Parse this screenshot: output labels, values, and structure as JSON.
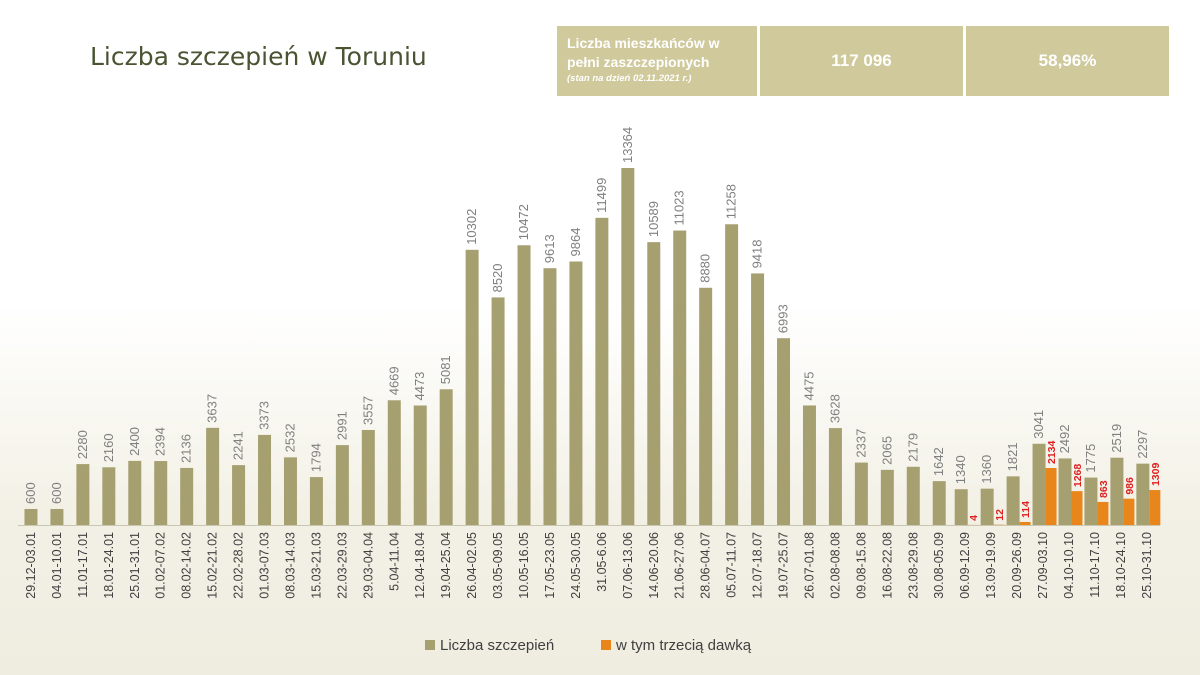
{
  "title": "Liczba szczepień w Toruniu",
  "info": {
    "label": "Liczba mieszkańców w pełni zaszczepionych",
    "note": "(stan na dzień 02.11.2021 r.)",
    "count": "117 096",
    "percent": "58,96%"
  },
  "colors": {
    "total": "#a6a071",
    "third": "#e8861c",
    "title": "#4a5433",
    "info_box": "#cfc99c"
  },
  "chart_data": {
    "type": "bar",
    "categories": [
      "29.12-03.01",
      "04.01-10.01",
      "11.01-17.01",
      "18.01-24.01",
      "25.01-31.01",
      "01.02-07.02",
      "08.02-14.02",
      "15.02-21.02",
      "22.02-28.02",
      "01.03-07.03",
      "08.03-14.03",
      "15.03-21.03",
      "22.03-29.03",
      "29.03-04.04",
      "5.04-11.04",
      "12.04-18.04",
      "19.04-25.04",
      "26.04-02.05",
      "03.05-09.05",
      "10.05-16.05",
      "17.05-23.05",
      "24.05-30.05",
      "31.05-6.06",
      "07.06-13.06",
      "14.06-20.06",
      "21.06-27.06",
      "28.06-04.07",
      "05.07-11.07",
      "12.07-18.07",
      "19.07-25.07",
      "26.07-01.08",
      "02.08-08.08",
      "09.08-15.08",
      "16.08-22.08",
      "23.08-29.08",
      "30.08-05.09",
      "06.09-12.09",
      "13.09-19.09",
      "20.09-26.09",
      "27.09-03.10",
      "04.10-10.10",
      "11.10-17.10",
      "18.10-24.10",
      "25.10-31.10"
    ],
    "series": [
      {
        "name": "Liczba szczepień",
        "values": [
          600,
          600,
          2280,
          2160,
          2400,
          2394,
          2136,
          3637,
          2241,
          3373,
          2532,
          1794,
          2991,
          3557,
          4669,
          4473,
          5081,
          10302,
          8520,
          10472,
          9613,
          9864,
          11499,
          13364,
          10589,
          11023,
          8880,
          11258,
          9418,
          6993,
          4475,
          3628,
          2337,
          2065,
          2179,
          1642,
          1340,
          1360,
          1821,
          3041,
          2492,
          1775,
          2519,
          2297
        ]
      },
      {
        "name": "w tym trzecią dawką",
        "values": [
          null,
          null,
          null,
          null,
          null,
          null,
          null,
          null,
          null,
          null,
          null,
          null,
          null,
          null,
          null,
          null,
          null,
          null,
          null,
          null,
          null,
          null,
          null,
          null,
          null,
          null,
          null,
          null,
          null,
          null,
          null,
          null,
          null,
          null,
          null,
          null,
          4,
          12,
          114,
          2134,
          1268,
          863,
          986,
          1309
        ]
      }
    ],
    "ylim": [
      0,
      13364
    ],
    "legend": "bottom-center",
    "grid": false
  }
}
